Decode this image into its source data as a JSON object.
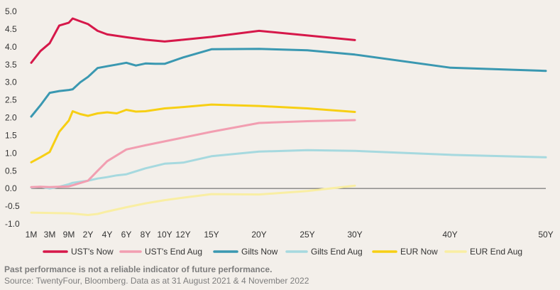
{
  "chart_data": {
    "type": "line",
    "x_categories": [
      "1M",
      "3M",
      "9M",
      "2Y",
      "4Y",
      "6Y",
      "8Y",
      "10Y",
      "12Y",
      "15Y",
      "20Y",
      "25Y",
      "30Y",
      "40Y",
      "50Y"
    ],
    "x_years": [
      0.0833,
      0.25,
      0.75,
      2,
      4,
      6,
      8,
      10,
      12,
      15,
      20,
      25,
      30,
      40,
      50
    ],
    "ylim": [
      -1.0,
      5.0
    ],
    "y_ticks": [
      "-1.0",
      "-0.5",
      "0.0",
      "0.5",
      "1.0",
      "1.5",
      "2.0",
      "2.5",
      "3.0",
      "3.5",
      "4.0",
      "4.5",
      "5.0"
    ],
    "y_tick_values": [
      -1.0,
      -0.5,
      0.0,
      0.5,
      1.0,
      1.5,
      2.0,
      2.5,
      3.0,
      3.5,
      4.0,
      4.5,
      5.0
    ],
    "grid": false,
    "legend_position": "bottom",
    "series": [
      {
        "name": "UST's Now",
        "color": "#d6184a",
        "points": [
          [
            0.0833,
            3.55
          ],
          [
            0.1667,
            3.88
          ],
          [
            0.25,
            4.1
          ],
          [
            0.5,
            4.6
          ],
          [
            0.75,
            4.68
          ],
          [
            1,
            4.8
          ],
          [
            1.5,
            4.72
          ],
          [
            2,
            4.64
          ],
          [
            3,
            4.45
          ],
          [
            4,
            4.35
          ],
          [
            6,
            4.27
          ],
          [
            8,
            4.2
          ],
          [
            10,
            4.15
          ],
          [
            12,
            4.2
          ],
          [
            15,
            4.28
          ],
          [
            20,
            4.45
          ],
          [
            25,
            4.32
          ],
          [
            30,
            4.19
          ]
        ]
      },
      {
        "name": "UST's End Aug",
        "color": "#f29eb1",
        "points": [
          [
            0.0833,
            0.04
          ],
          [
            0.1667,
            0.05
          ],
          [
            0.25,
            0.04
          ],
          [
            0.5,
            0.05
          ],
          [
            0.75,
            0.06
          ],
          [
            1,
            0.09
          ],
          [
            2,
            0.22
          ],
          [
            3,
            0.5
          ],
          [
            4,
            0.77
          ],
          [
            6,
            1.1
          ],
          [
            8,
            1.22
          ],
          [
            10,
            1.33
          ],
          [
            15,
            1.6
          ],
          [
            20,
            1.85
          ],
          [
            25,
            1.9
          ],
          [
            30,
            1.93
          ]
        ]
      },
      {
        "name": "Gilts Now",
        "color": "#3a98b1",
        "points": [
          [
            0.0833,
            2.03
          ],
          [
            0.1667,
            2.35
          ],
          [
            0.25,
            2.7
          ],
          [
            0.5,
            2.75
          ],
          [
            0.75,
            2.78
          ],
          [
            1,
            2.8
          ],
          [
            1.5,
            3.0
          ],
          [
            2,
            3.15
          ],
          [
            3,
            3.4
          ],
          [
            4,
            3.45
          ],
          [
            5,
            3.5
          ],
          [
            6,
            3.55
          ],
          [
            7,
            3.47
          ],
          [
            8,
            3.53
          ],
          [
            9,
            3.52
          ],
          [
            10,
            3.52
          ],
          [
            12,
            3.7
          ],
          [
            15,
            3.93
          ],
          [
            20,
            3.94
          ],
          [
            25,
            3.9
          ],
          [
            30,
            3.78
          ],
          [
            40,
            3.41
          ],
          [
            50,
            3.32
          ]
        ]
      },
      {
        "name": "Gilts End Aug",
        "color": "#a6d9df",
        "points": [
          [
            0.0833,
            0.03
          ],
          [
            0.1667,
            0.05
          ],
          [
            0.25,
            0.0
          ],
          [
            0.5,
            0.05
          ],
          [
            0.75,
            0.12
          ],
          [
            1,
            0.16
          ],
          [
            2,
            0.22
          ],
          [
            3,
            0.28
          ],
          [
            4,
            0.32
          ],
          [
            5,
            0.37
          ],
          [
            6,
            0.4
          ],
          [
            8,
            0.57
          ],
          [
            10,
            0.7
          ],
          [
            12,
            0.73
          ],
          [
            15,
            0.91
          ],
          [
            20,
            1.04
          ],
          [
            25,
            1.08
          ],
          [
            30,
            1.06
          ],
          [
            40,
            0.95
          ],
          [
            50,
            0.88
          ]
        ]
      },
      {
        "name": "EUR Now",
        "color": "#f7cf14",
        "points": [
          [
            0.0833,
            0.74
          ],
          [
            0.1667,
            0.88
          ],
          [
            0.25,
            1.03
          ],
          [
            0.5,
            1.6
          ],
          [
            0.75,
            1.92
          ],
          [
            1,
            2.18
          ],
          [
            1.5,
            2.1
          ],
          [
            2,
            2.05
          ],
          [
            3,
            2.12
          ],
          [
            4,
            2.15
          ],
          [
            5,
            2.12
          ],
          [
            6,
            2.22
          ],
          [
            7,
            2.17
          ],
          [
            8,
            2.18
          ],
          [
            10,
            2.26
          ],
          [
            12,
            2.3
          ],
          [
            15,
            2.37
          ],
          [
            20,
            2.33
          ],
          [
            25,
            2.26
          ],
          [
            30,
            2.16
          ]
        ]
      },
      {
        "name": "EUR End Aug",
        "color": "#f9eea3",
        "points": [
          [
            0.0833,
            -0.68
          ],
          [
            0.25,
            -0.69
          ],
          [
            0.75,
            -0.7
          ],
          [
            1,
            -0.71
          ],
          [
            2,
            -0.75
          ],
          [
            3,
            -0.72
          ],
          [
            4,
            -0.65
          ],
          [
            6,
            -0.53
          ],
          [
            8,
            -0.42
          ],
          [
            10,
            -0.33
          ],
          [
            12,
            -0.26
          ],
          [
            15,
            -0.16
          ],
          [
            20,
            -0.17
          ],
          [
            25,
            -0.07
          ],
          [
            30,
            0.08
          ]
        ]
      }
    ]
  },
  "footer": {
    "disclaimer": "Past performance is not a reliable indicator of future performance.",
    "source": "Source: TwentyFour, Bloomberg. Data as at 31 August 2021 & 4 November 2022"
  }
}
